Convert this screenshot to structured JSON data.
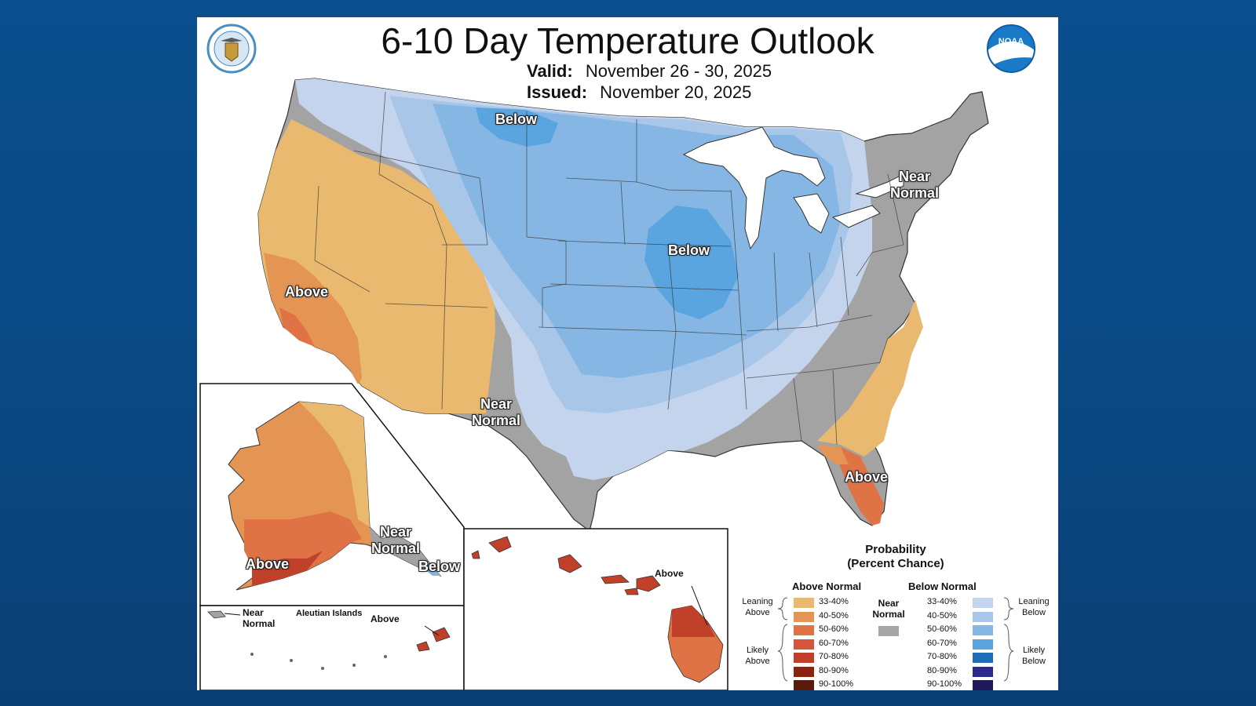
{
  "title": "6-10 Day Temperature Outlook",
  "valid": {
    "label": "Valid:",
    "value": "November 26 - 30, 2025"
  },
  "issued": {
    "label": "Issued:",
    "value": "November 20, 2025"
  },
  "logos": {
    "left": "commerce-seal-icon",
    "right": "noaa-logo-icon",
    "right_text": "NOAA"
  },
  "map_labels": {
    "below_north": "Below",
    "below_midwest": "Below",
    "near_normal_ne_1": "Near",
    "near_normal_ne_2": "Normal",
    "above_west": "Above",
    "near_normal_tx_1": "Near",
    "near_normal_tx_2": "Normal",
    "above_fl": "Above",
    "ak_near_1": "Near",
    "ak_near_2": "Normal",
    "ak_below": "Below",
    "ak_above": "Above",
    "aleutian_title": "Aleutian Islands",
    "aleutian_near_1": "Near",
    "aleutian_near_2": "Normal",
    "aleutian_above": "Above",
    "hawaii_above": "Above"
  },
  "legend": {
    "title_1": "Probability",
    "title_2": "(Percent Chance)",
    "above_header": "Above Normal",
    "below_header": "Below Normal",
    "near_1": "Near",
    "near_2": "Normal",
    "leaning_above_1": "Leaning",
    "leaning_above_2": "Above",
    "likely_above_1": "Likely",
    "likely_above_2": "Above",
    "leaning_below_1": "Leaning",
    "leaning_below_2": "Below",
    "likely_below_1": "Likely",
    "likely_below_2": "Below",
    "above_colors": [
      "#e8b96e",
      "#e59553",
      "#e07345",
      "#d5553a",
      "#c1402a",
      "#8a2310",
      "#5c1a0b"
    ],
    "below_colors": [
      "#c4d4ec",
      "#a8c6e8",
      "#86b7e4",
      "#5aa4df",
      "#1e6db6",
      "#2a2b8a",
      "#1e1a5a"
    ],
    "near_color": "#a6a6a6",
    "ranges": [
      "33-40%",
      "40-50%",
      "50-60%",
      "60-70%",
      "70-80%",
      "80-90%",
      "90-100%"
    ]
  }
}
